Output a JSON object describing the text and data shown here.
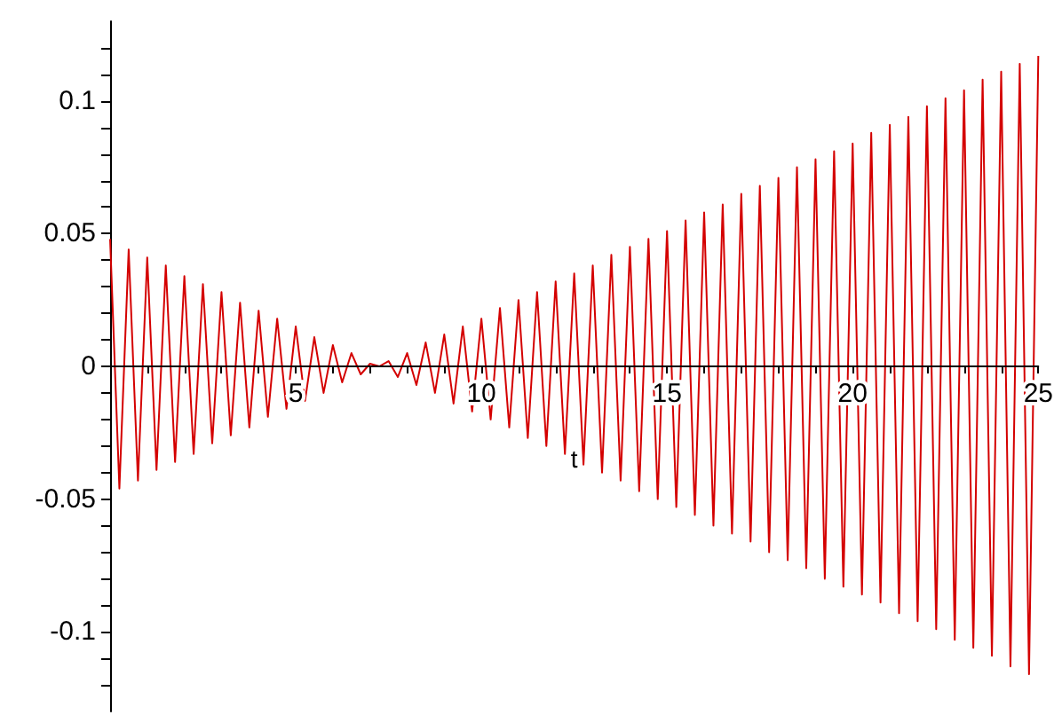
{
  "chart_data": {
    "type": "line",
    "xlabel": "t",
    "x": [
      0,
      0.25,
      0.5,
      0.75,
      1,
      1.25,
      1.5,
      1.75,
      2,
      2.25,
      2.5,
      2.75,
      3,
      3.25,
      3.5,
      3.75,
      4,
      4.25,
      4.5,
      4.75,
      5,
      5.25,
      5.5,
      5.75,
      6,
      6.25,
      6.5,
      6.75,
      7,
      7.25,
      7.5,
      7.75,
      8,
      8.25,
      8.5,
      8.75,
      9,
      9.25,
      9.5,
      9.75,
      10,
      10.25,
      10.5,
      10.75,
      11,
      11.25,
      11.5,
      11.75,
      12,
      12.25,
      12.5,
      12.75,
      13,
      13.25,
      13.5,
      13.75,
      14,
      14.25,
      14.5,
      14.75,
      15,
      15.25,
      15.5,
      15.75,
      16,
      16.25,
      16.5,
      16.75,
      17,
      17.25,
      17.5,
      17.75,
      18,
      18.25,
      18.5,
      18.75,
      19,
      19.25,
      19.5,
      19.75,
      20,
      20.25,
      20.5,
      20.75,
      21,
      21.25,
      21.5,
      21.75,
      22,
      22.25,
      22.5,
      22.75,
      23,
      23.25,
      23.5,
      23.75,
      24,
      24.25,
      24.5,
      24.75,
      25
    ],
    "series": [
      {
        "color": "#d40000",
        "values": [
          0.048,
          -0.046,
          0.044,
          -0.043,
          0.041,
          -0.039,
          0.038,
          -0.036,
          0.034,
          -0.033,
          0.031,
          -0.029,
          0.028,
          -0.026,
          0.024,
          -0.023,
          0.021,
          -0.019,
          0.018,
          -0.016,
          0.015,
          -0.013,
          0.011,
          -0.01,
          0.008,
          -0.006,
          0.005,
          -0.003,
          0.001,
          0,
          0.002,
          -0.004,
          0.005,
          -0.007,
          0.009,
          -0.01,
          0.012,
          -0.014,
          0.015,
          -0.017,
          0.018,
          -0.02,
          0.022,
          -0.023,
          0.025,
          -0.027,
          0.028,
          -0.03,
          0.032,
          -0.033,
          0.035,
          -0.037,
          0.038,
          -0.04,
          0.042,
          -0.043,
          0.045,
          -0.047,
          0.048,
          -0.05,
          0.051,
          -0.053,
          0.055,
          -0.056,
          0.058,
          -0.06,
          0.061,
          -0.063,
          0.065,
          -0.066,
          0.068,
          -0.07,
          0.071,
          -0.073,
          0.075,
          -0.076,
          0.078,
          -0.08,
          0.081,
          -0.083,
          0.084,
          -0.086,
          0.088,
          -0.089,
          0.091,
          -0.093,
          0.094,
          -0.096,
          0.098,
          -0.099,
          0.101,
          -0.103,
          0.104,
          -0.106,
          0.108,
          -0.109,
          0.111,
          -0.113,
          0.114,
          -0.116,
          0.117
        ]
      }
    ],
    "xlim": [
      0,
      25
    ],
    "xticks": [
      {
        "value": 1,
        "label": null
      },
      {
        "value": 2,
        "label": null
      },
      {
        "value": 3,
        "label": null
      },
      {
        "value": 4,
        "label": null
      },
      5,
      {
        "value": 6,
        "label": null
      },
      {
        "value": 7,
        "label": null
      },
      {
        "value": 8,
        "label": null
      },
      {
        "value": 9,
        "label": null
      },
      10,
      {
        "value": 11,
        "label": null
      },
      {
        "value": 12,
        "label": null
      },
      {
        "value": 13,
        "label": null
      },
      {
        "value": 14,
        "label": null
      },
      15,
      {
        "value": 16,
        "label": null
      },
      {
        "value": 17,
        "label": null
      },
      {
        "value": 18,
        "label": null
      },
      {
        "value": 19,
        "label": null
      },
      20,
      {
        "value": 21,
        "label": null
      },
      {
        "value": 22,
        "label": null
      },
      {
        "value": 23,
        "label": null
      },
      {
        "value": 24,
        "label": null
      },
      25
    ],
    "ylim": [
      -0.13,
      0.13
    ],
    "yticks": [
      {
        "value": -0.12,
        "label": null
      },
      {
        "value": -0.11,
        "label": null
      },
      -0.1,
      {
        "value": -0.09,
        "label": null
      },
      {
        "value": -0.08,
        "label": null
      },
      {
        "value": -0.07,
        "label": null
      },
      {
        "value": -0.06,
        "label": null
      },
      -0.05,
      {
        "value": -0.04,
        "label": null
      },
      {
        "value": -0.03,
        "label": null
      },
      {
        "value": -0.02,
        "label": null
      },
      {
        "value": -0.01,
        "label": null
      },
      0,
      {
        "value": 0.01,
        "label": null
      },
      {
        "value": 0.02,
        "label": null
      },
      {
        "value": 0.03,
        "label": null
      },
      {
        "value": 0.04,
        "label": null
      },
      0.05,
      {
        "value": 0.06,
        "label": null
      },
      {
        "value": 0.07,
        "label": null
      },
      {
        "value": 0.08,
        "label": null
      },
      {
        "value": 0.09,
        "label": null
      },
      0.1,
      {
        "value": 0.11,
        "label": null
      },
      {
        "value": 0.12,
        "label": null
      }
    ],
    "grid": false,
    "marker": "none",
    "line_style": "solid"
  }
}
